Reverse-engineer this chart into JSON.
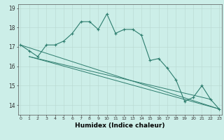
{
  "xlabel": "Humidex (Indice chaleur)",
  "bg_color": "#cceee8",
  "line_color": "#2d7d6e",
  "x_values": [
    0,
    1,
    2,
    3,
    4,
    5,
    6,
    7,
    8,
    9,
    10,
    11,
    12,
    13,
    14,
    15,
    16,
    17,
    18,
    19,
    20,
    21,
    22,
    23
  ],
  "y_main": [
    17.1,
    16.8,
    16.5,
    17.1,
    17.1,
    17.3,
    17.7,
    18.3,
    18.3,
    17.9,
    18.7,
    17.7,
    17.9,
    17.9,
    17.6,
    16.3,
    16.4,
    15.9,
    15.3,
    14.2,
    14.4,
    15.0,
    14.3,
    13.8
  ],
  "line1": [
    [
      0,
      17.1
    ],
    [
      23,
      13.8
    ]
  ],
  "line2": [
    [
      1,
      16.5
    ],
    [
      23,
      13.8
    ]
  ],
  "line3": [
    [
      1,
      16.5
    ],
    [
      22,
      14.3
    ]
  ],
  "ylim": [
    13.5,
    19.2
  ],
  "xlim": [
    -0.3,
    23.3
  ],
  "yticks": [
    14,
    15,
    16,
    17,
    18,
    19
  ],
  "xticks": [
    0,
    1,
    2,
    3,
    4,
    5,
    6,
    7,
    8,
    9,
    10,
    11,
    12,
    13,
    14,
    15,
    16,
    17,
    18,
    19,
    20,
    21,
    22,
    23
  ]
}
